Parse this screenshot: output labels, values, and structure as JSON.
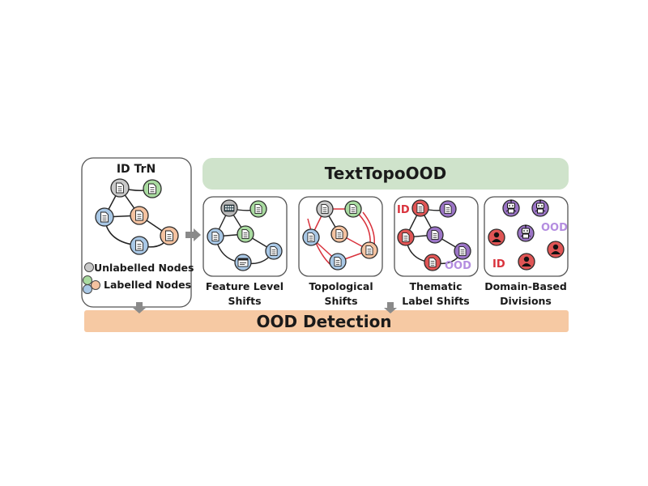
{
  "title": "TextTopoOOD",
  "bottom_bar": "OOD Detection",
  "id_panel": {
    "title": "ID TrN",
    "legend_unlabelled": "Unlabelled Nodes",
    "legend_labelled": "Labelled Nodes"
  },
  "panels": {
    "feature": "Feature Level\nShifts",
    "topological": "Topological\nShifts",
    "thematic": "Thematic\nLabel Shifts",
    "domain": "Domain-Based\nDivisions"
  },
  "marks": {
    "id": "ID",
    "ood": "OOD"
  },
  "colors": {
    "title_bar": "#cfe3cb",
    "bottom_bar": "#f6c9a3",
    "node_gray": "#c9c9c9",
    "node_green": "#a9dba0",
    "node_blue": "#a9c8e6",
    "node_orange": "#f4c2a0",
    "node_purple": "#9b74c6",
    "node_red": "#e05555",
    "edge_red": "#d9323c",
    "id_red": "#d9323c",
    "ood_purple": "#b48de0",
    "arrow": "#8a8a8a"
  }
}
